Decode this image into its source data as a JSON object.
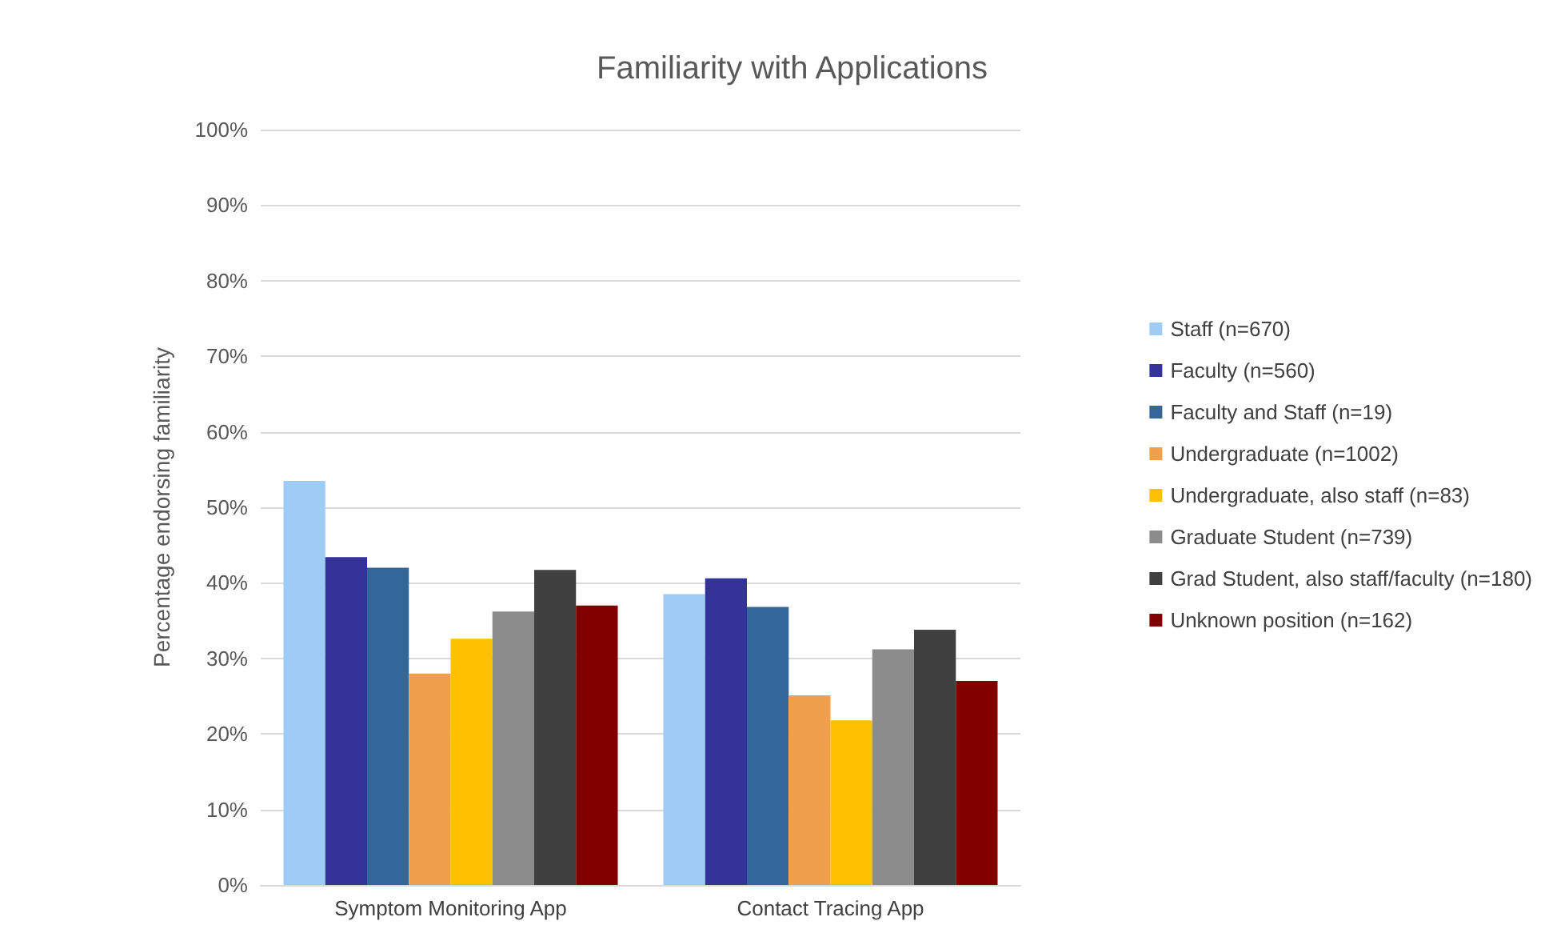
{
  "chart_data": {
    "type": "bar",
    "title": "Familiarity with Applications",
    "ylabel": "Percentage endorsing familiarity",
    "categories": [
      "Symptom Monitoring App",
      "Contact Tracing App"
    ],
    "series": [
      {
        "name": "Staff (n=670)",
        "color": "#9fcbf7",
        "values": [
          53.5,
          38.5
        ]
      },
      {
        "name": "Faculty (n=560)",
        "color": "#333399",
        "values": [
          43.4,
          40.6
        ]
      },
      {
        "name": "Faculty and Staff (n=19)",
        "color": "#336699",
        "values": [
          42,
          36.8
        ]
      },
      {
        "name": "Undergraduate (n=1002)",
        "color": "#f0a04b",
        "values": [
          28,
          25.1
        ]
      },
      {
        "name": "Undergraduate, also staff (n=83)",
        "color": "#ffc000",
        "values": [
          32.6,
          21.8
        ]
      },
      {
        "name": "Graduate Student (n=739)",
        "color": "#8c8c8c",
        "values": [
          36.2,
          31.2
        ]
      },
      {
        "name": "Grad Student, also staff/faculty (n=180)",
        "color": "#404040",
        "values": [
          41.7,
          33.8
        ]
      },
      {
        "name": "Unknown position (n=162)",
        "color": "#800000",
        "values": [
          37,
          27
        ]
      }
    ],
    "ylim": [
      0,
      100
    ],
    "yticks": [
      {
        "value": 0,
        "label": "0%"
      },
      {
        "value": 10,
        "label": "10%"
      },
      {
        "value": 20,
        "label": "20%"
      },
      {
        "value": 30,
        "label": "30%"
      },
      {
        "value": 40,
        "label": "40%"
      },
      {
        "value": 50,
        "label": "50%"
      },
      {
        "value": 60,
        "label": "60%"
      },
      {
        "value": 70,
        "label": "70%"
      },
      {
        "value": 80,
        "label": "80%"
      },
      {
        "value": 90,
        "label": "90%"
      },
      {
        "value": 100,
        "label": "100%"
      }
    ],
    "grid": "y",
    "legend": "right"
  }
}
